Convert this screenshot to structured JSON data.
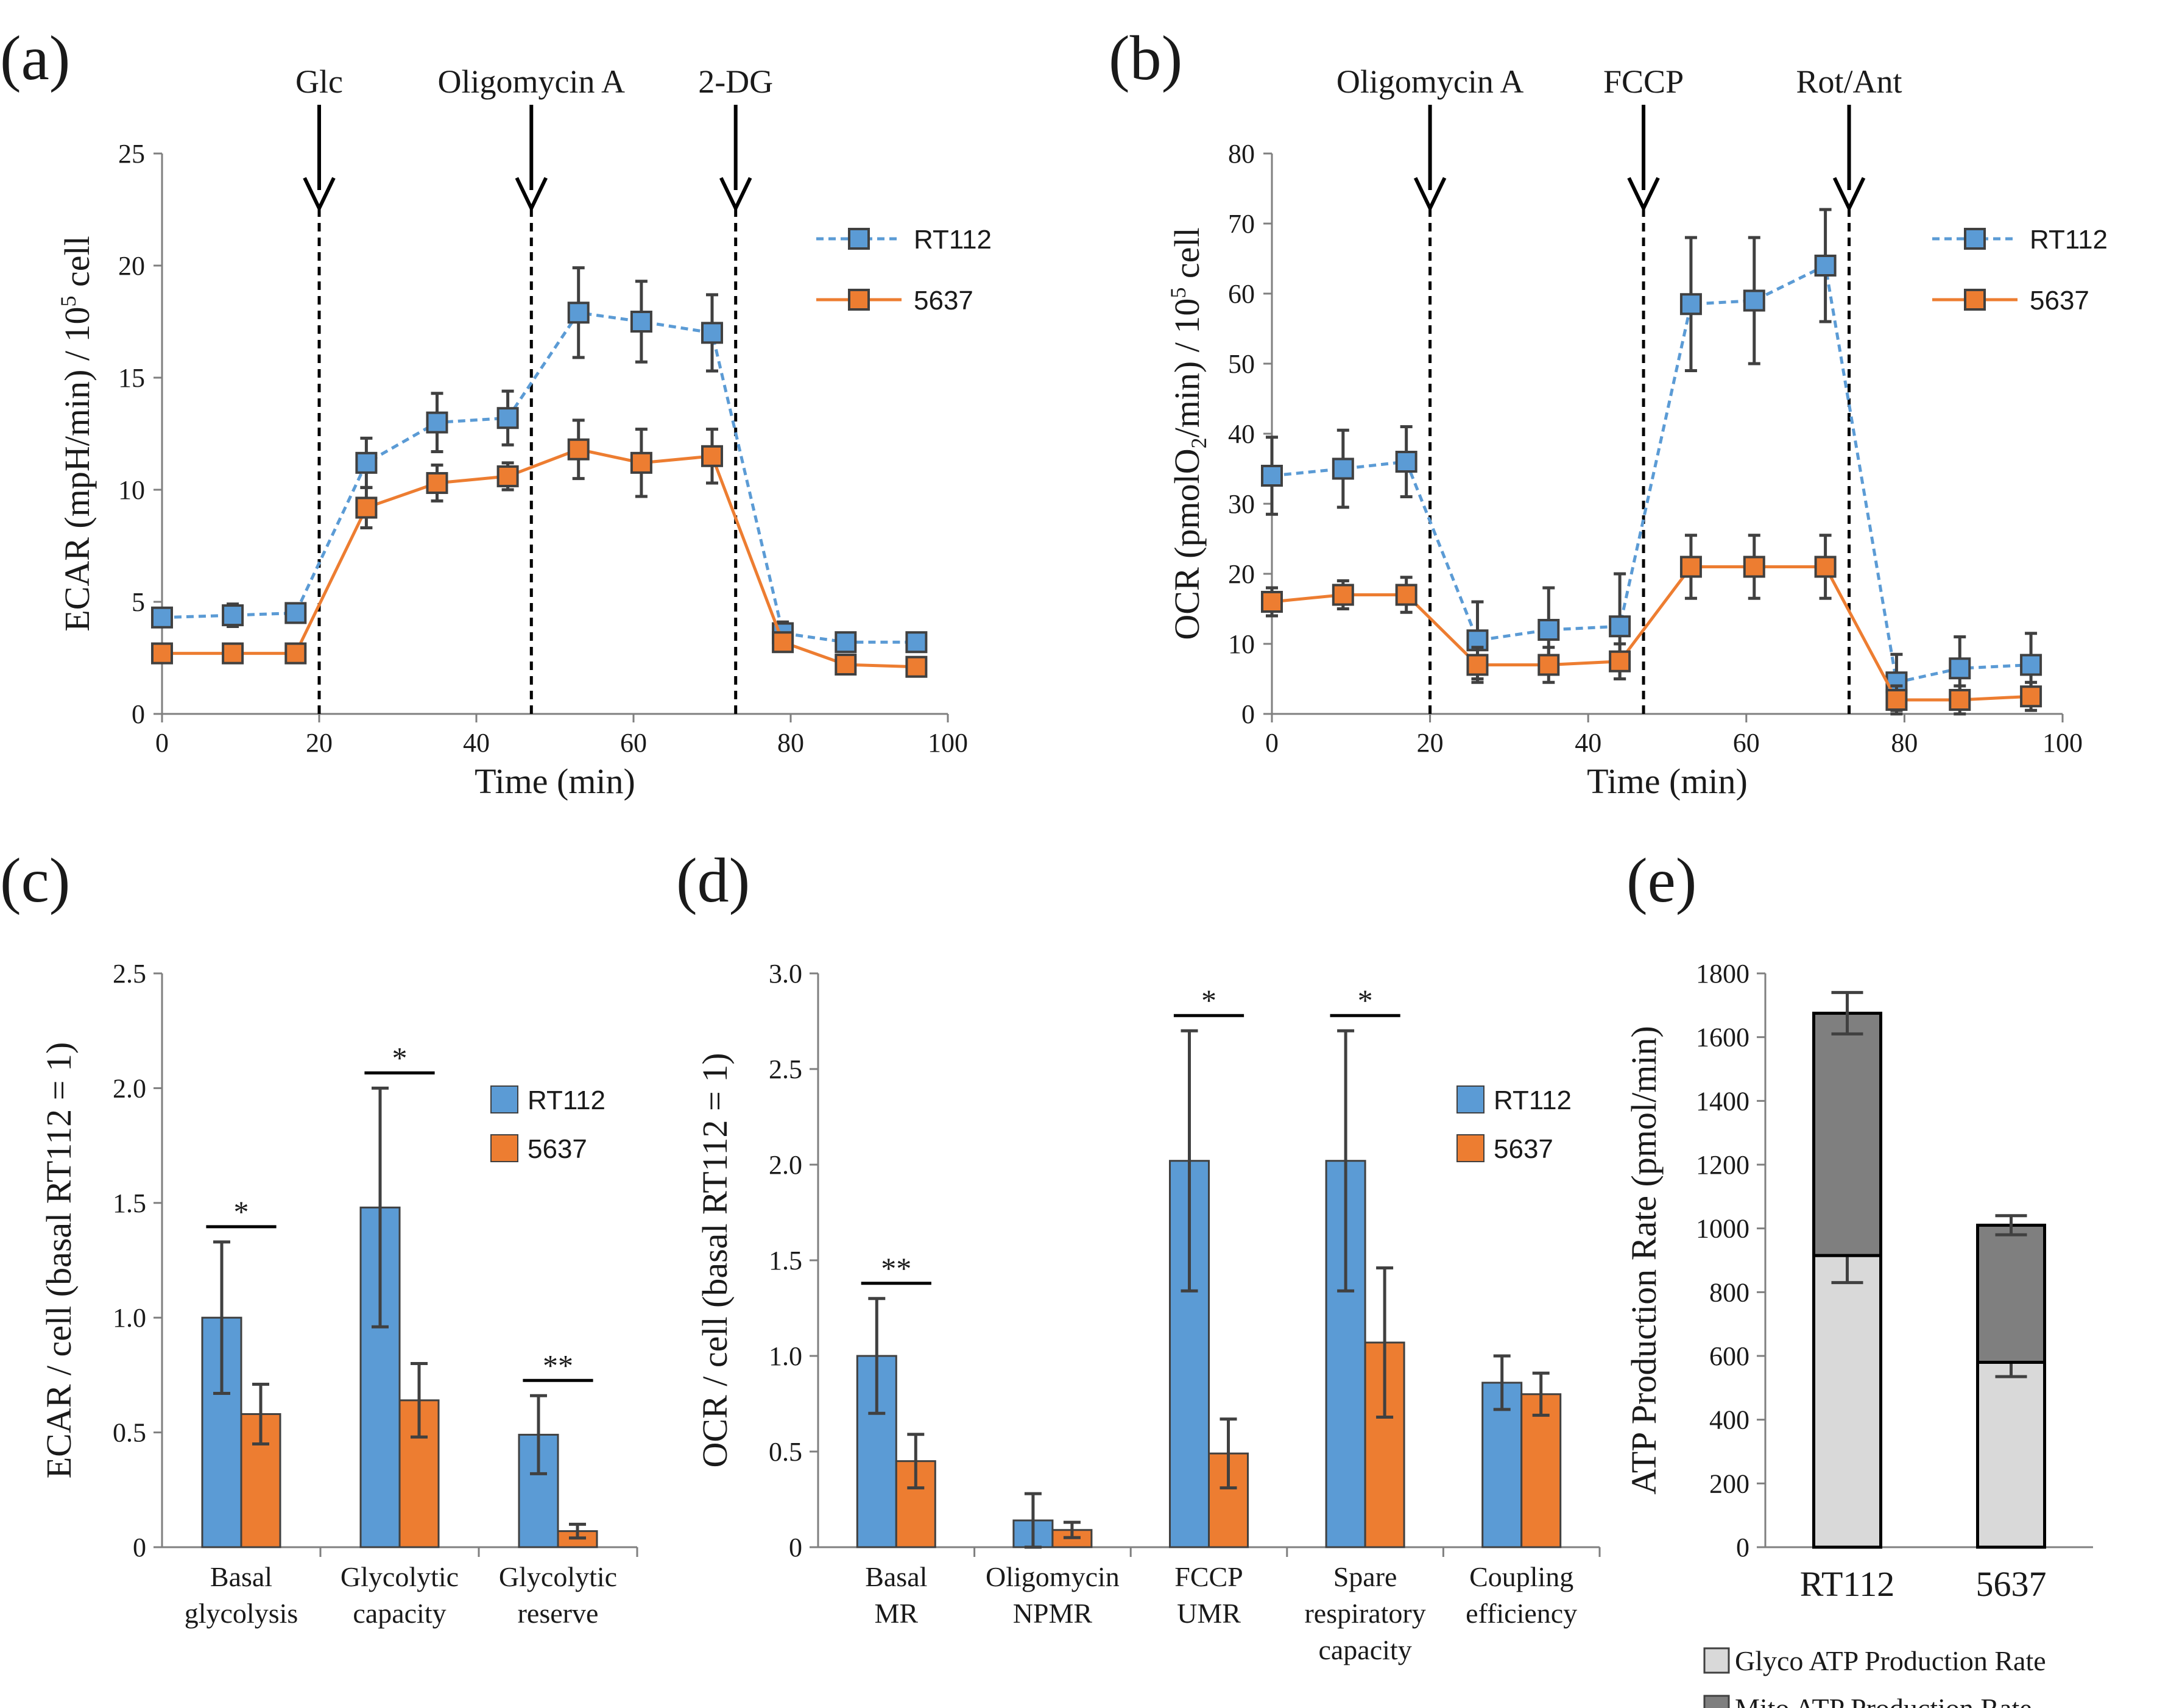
{
  "colors": {
    "rt112": "#5b9bd5",
    "rt112_edge": "#2f5597",
    "c5637": "#ed7d31",
    "c5637_edge": "#c55a11",
    "glyco": "#d9d9d9",
    "mito": "#7f7f7f",
    "axis": "#7f7f7f",
    "err": "#404040"
  },
  "panels": {
    "a": {
      "label": "(a)"
    },
    "b": {
      "label": "(b)"
    },
    "c": {
      "label": "(c)"
    },
    "d": {
      "label": "(d)"
    },
    "e": {
      "label": "(e)"
    }
  },
  "chart_data": [
    {
      "id": "a",
      "type": "line",
      "xlabel": "Time (min)",
      "ylabel_parts": [
        "ECAR (mpH/min) / 10",
        "5",
        " cell"
      ],
      "xlim": [
        0,
        100
      ],
      "ylim": [
        0,
        25
      ],
      "xticks": [
        0,
        20,
        40,
        60,
        80,
        100
      ],
      "yticks": [
        0,
        5,
        10,
        15,
        20,
        25
      ],
      "annotations": [
        {
          "x": 20,
          "label": "Glc"
        },
        {
          "x": 47,
          "label": "Oligomycin A"
        },
        {
          "x": 73,
          "label": "2-DG"
        }
      ],
      "series": [
        {
          "name": "RT112",
          "style": "dashed",
          "color": "#5b9bd5",
          "x": [
            0,
            9,
            17,
            26,
            35,
            44,
            53,
            61,
            70,
            79,
            87,
            96
          ],
          "y": [
            4.3,
            4.4,
            4.5,
            11.2,
            13.0,
            13.2,
            17.9,
            17.5,
            17.0,
            3.6,
            3.2,
            3.2
          ],
          "err": [
            0.4,
            0.5,
            0.4,
            1.1,
            1.3,
            1.2,
            2.0,
            1.8,
            1.7,
            0.5,
            0.3,
            0.3
          ]
        },
        {
          "name": "5637",
          "style": "solid",
          "color": "#ed7d31",
          "x": [
            0,
            9,
            17,
            26,
            35,
            44,
            53,
            61,
            70,
            79,
            87,
            96
          ],
          "y": [
            2.7,
            2.7,
            2.7,
            9.2,
            10.3,
            10.6,
            11.8,
            11.2,
            11.5,
            3.2,
            2.2,
            2.1
          ],
          "err": [
            0.3,
            0.3,
            0.3,
            0.9,
            0.8,
            0.6,
            1.3,
            1.5,
            1.2,
            0.4,
            0.3,
            0.3
          ]
        }
      ]
    },
    {
      "id": "b",
      "type": "line",
      "xlabel": "Time (min)",
      "ylabel_parts": [
        "OCR (pmolO",
        "2",
        "/min) / 10",
        "5",
        " cell"
      ],
      "xlim": [
        0,
        100
      ],
      "ylim": [
        0,
        80
      ],
      "xticks": [
        0,
        20,
        40,
        60,
        80,
        100
      ],
      "yticks": [
        0,
        10,
        20,
        30,
        40,
        50,
        60,
        70,
        80
      ],
      "annotations": [
        {
          "x": 20,
          "label": "Oligomycin A"
        },
        {
          "x": 47,
          "label": "FCCP"
        },
        {
          "x": 73,
          "label": "Rot/Ant"
        }
      ],
      "series": [
        {
          "name": "RT112",
          "style": "dashed",
          "color": "#5b9bd5",
          "x": [
            0,
            9,
            17,
            26,
            35,
            44,
            53,
            61,
            70,
            79,
            87,
            96
          ],
          "y": [
            34,
            35,
            36,
            10.5,
            12,
            12.5,
            58.5,
            59,
            64,
            4.5,
            6.5,
            7
          ],
          "err": [
            5.5,
            5.5,
            5.0,
            5.5,
            6.0,
            7.5,
            9.5,
            9.0,
            8.0,
            4.0,
            4.5,
            4.5
          ]
        },
        {
          "name": "5637",
          "style": "solid",
          "color": "#ed7d31",
          "x": [
            0,
            9,
            17,
            26,
            35,
            44,
            53,
            61,
            70,
            79,
            87,
            96
          ],
          "y": [
            16,
            17,
            17,
            7,
            7,
            7.5,
            21,
            21,
            21,
            2,
            2,
            2.5
          ],
          "err": [
            2.0,
            2.0,
            2.5,
            2.5,
            2.5,
            2.5,
            4.5,
            4.5,
            4.5,
            2.0,
            2.0,
            2.0
          ]
        }
      ]
    },
    {
      "id": "c",
      "type": "bar",
      "ylabel": "ECAR / cell (basal RT112 = 1)",
      "ylim": [
        0,
        2.5
      ],
      "ytick_labels": [
        "0",
        "0.5",
        "1.0",
        "1.5",
        "2.0",
        "2.5"
      ],
      "categories": [
        [
          "Basal",
          "glycolysis"
        ],
        [
          "Glycolytic",
          "capacity"
        ],
        [
          "Glycolytic",
          "reserve"
        ]
      ],
      "series": [
        {
          "name": "RT112",
          "color": "#5b9bd5",
          "values": [
            1.0,
            1.48,
            0.49
          ],
          "err": [
            0.33,
            0.52,
            0.17
          ]
        },
        {
          "name": "5637",
          "color": "#ed7d31",
          "values": [
            0.58,
            0.64,
            0.07
          ],
          "err": [
            0.13,
            0.16,
            0.03
          ]
        }
      ],
      "significance": [
        "*",
        "*",
        "**"
      ]
    },
    {
      "id": "d",
      "type": "bar",
      "ylabel": "OCR / cell (basal RT112 = 1)",
      "ylim": [
        0,
        3.0
      ],
      "ytick_labels": [
        "0",
        "0.5",
        "1.0",
        "1.5",
        "2.0",
        "2.5",
        "3.0"
      ],
      "categories": [
        [
          "Basal",
          "MR"
        ],
        [
          "Oligomycin",
          "NPMR"
        ],
        [
          "FCCP",
          "UMR"
        ],
        [
          "Spare",
          "respiratory",
          "capacity"
        ],
        [
          "Coupling",
          "efficiency"
        ]
      ],
      "series": [
        {
          "name": "RT112",
          "color": "#5b9bd5",
          "values": [
            1.0,
            0.14,
            2.02,
            2.02,
            0.86
          ],
          "err": [
            0.3,
            0.14,
            0.68,
            0.68,
            0.14
          ]
        },
        {
          "name": "5637",
          "color": "#ed7d31",
          "values": [
            0.45,
            0.09,
            0.49,
            1.07,
            0.8
          ],
          "err": [
            0.14,
            0.04,
            0.18,
            0.39,
            0.11
          ]
        }
      ],
      "significance": [
        "**",
        "",
        "*",
        "*",
        ""
      ]
    },
    {
      "id": "e",
      "type": "bar",
      "stacked": true,
      "ylabel": "ATP Production Rate (pmol/min)",
      "ylim": [
        0,
        1800
      ],
      "yticks": [
        0,
        200,
        400,
        600,
        800,
        1000,
        1200,
        1400,
        1600,
        1800
      ],
      "categories": [
        "RT112",
        "5637"
      ],
      "series": [
        {
          "name": "Glyco ATP Production Rate",
          "color": "#d9d9d9",
          "values": [
            915,
            580
          ],
          "err": [
            85,
            45
          ]
        },
        {
          "name": "Mito ATP Production Rate",
          "color": "#7f7f7f",
          "values": [
            760,
            430
          ],
          "err": [
            65,
            30
          ]
        }
      ]
    }
  ]
}
